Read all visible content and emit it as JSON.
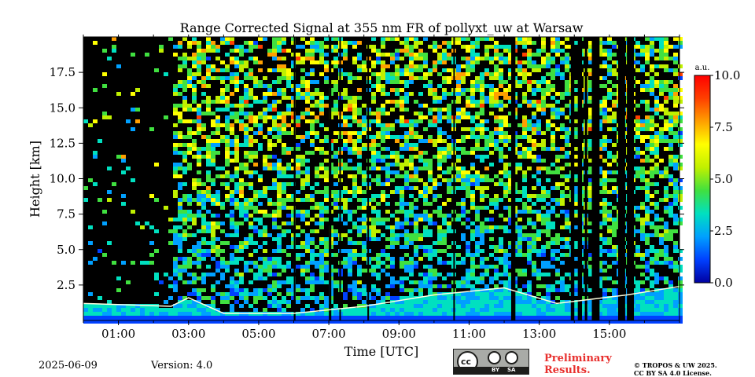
{
  "chart_data": {
    "type": "heatmap",
    "title": "Range Corrected Signal at 355 nm FR of pollyxt_uw at Warsaw",
    "xlabel": "Time [UTC]",
    "ylabel": "Height [km]",
    "x_range_hours": [
      0.0,
      17.0
    ],
    "ylim": [
      0,
      20
    ],
    "x_ticks": [
      {
        "hour": 1,
        "label": "01:00"
      },
      {
        "hour": 3,
        "label": "03:00"
      },
      {
        "hour": 5,
        "label": "05:00"
      },
      {
        "hour": 7,
        "label": "07:00"
      },
      {
        "hour": 9,
        "label": "09:00"
      },
      {
        "hour": 11,
        "label": "11:00"
      },
      {
        "hour": 13,
        "label": "13:00"
      },
      {
        "hour": 15,
        "label": "15:00"
      }
    ],
    "y_ticks": [
      {
        "value": 2.5,
        "label": "2.5"
      },
      {
        "value": 5.0,
        "label": "5.0"
      },
      {
        "value": 7.5,
        "label": "7.5"
      },
      {
        "value": 10.0,
        "label": "10.0"
      },
      {
        "value": 12.5,
        "label": "12.5"
      },
      {
        "value": 15.0,
        "label": "15.0"
      },
      {
        "value": 17.5,
        "label": "17.5"
      }
    ],
    "colorbar": {
      "unit": "a.u.",
      "range": [
        0.0,
        10.0
      ],
      "ticks": [
        {
          "value": 0.0,
          "label": "0.0"
        },
        {
          "value": 2.5,
          "label": "2.5"
        },
        {
          "value": 5.0,
          "label": "5.0"
        },
        {
          "value": 7.5,
          "label": "7.5"
        },
        {
          "value": 10.0,
          "label": "10.0"
        }
      ],
      "colormap": [
        "#0000a0",
        "#0040ff",
        "#00a0ff",
        "#00e0c0",
        "#40e040",
        "#c0f000",
        "#ffff00",
        "#ffa000",
        "#ff4000",
        "#ff0000"
      ]
    },
    "boundary_layer_top_km": [
      {
        "hour": 0.0,
        "value": 1.2
      },
      {
        "hour": 2.5,
        "value": 1.0
      },
      {
        "hour": 3.0,
        "value": 1.6
      },
      {
        "hour": 4.0,
        "value": 0.5
      },
      {
        "hour": 6.0,
        "value": 0.5
      },
      {
        "hour": 8.0,
        "value": 1.0
      },
      {
        "hour": 10.0,
        "value": 1.8
      },
      {
        "hour": 12.0,
        "value": 2.3
      },
      {
        "hour": 13.5,
        "value": 1.2
      },
      {
        "hour": 15.5,
        "value": 1.8
      },
      {
        "hour": 17.0,
        "value": 2.4
      }
    ],
    "no_data_periods_hours": [
      [
        6.0,
        6.05
      ],
      [
        7.0,
        7.07
      ],
      [
        7.3,
        7.33
      ],
      [
        8.1,
        8.12
      ],
      [
        10.55,
        10.58
      ],
      [
        12.2,
        12.32
      ],
      [
        13.9,
        14.0
      ],
      [
        14.1,
        14.22
      ],
      [
        14.3,
        14.37
      ],
      [
        14.5,
        14.72
      ],
      [
        15.25,
        15.45
      ],
      [
        15.5,
        15.7
      ]
    ]
  },
  "footer": {
    "date": "2025-06-09",
    "version": "Version: 4.0",
    "license_badge": {
      "cc": "cc",
      "by": "BY",
      "sa": "SA"
    },
    "preliminary": [
      "Preliminary",
      "Results."
    ],
    "copyright": [
      "© TROPOS & UW 2025.",
      "CC BY SA 4.0 License."
    ]
  }
}
